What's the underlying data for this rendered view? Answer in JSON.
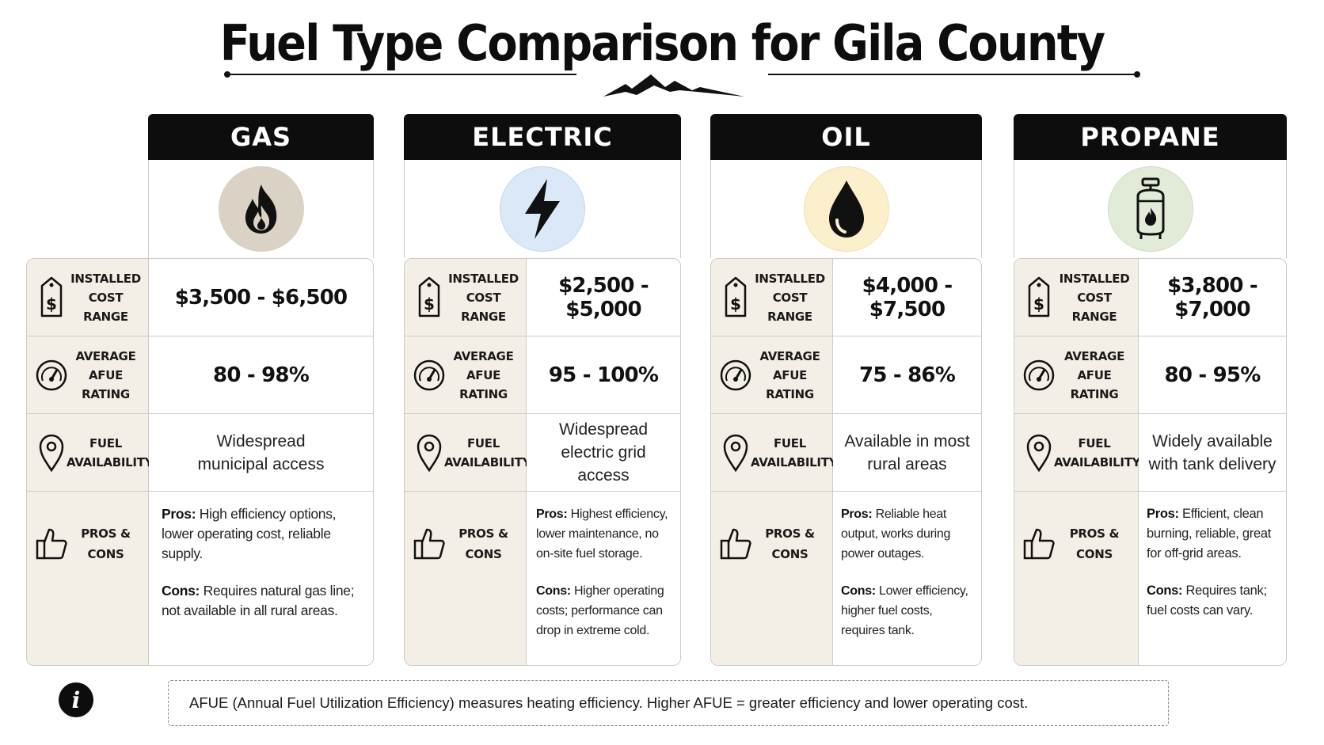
{
  "title": "Fuel Type Comparison for Gila County",
  "labels": {
    "cost_line1": "INSTALLED",
    "cost_line2": "COST RANGE",
    "afue_line1": "AVERAGE",
    "afue_line2": "AFUE RATING",
    "avail_line1": "FUEL",
    "avail_line2": "AVAILABILITY",
    "pros_cons": "PROS & CONS"
  },
  "cards": [
    {
      "name": "GAS",
      "icon": "flame-icon",
      "icon_bg": "#d9d2c5",
      "cost": "$3,500 - $6,500",
      "afue": "80 - 98%",
      "availability_line1": "Widespread",
      "availability_line2": "municipal access",
      "pros_label": "Pros:",
      "pros": "High efficiency options, lower operating cost, reliable supply.",
      "cons_label": "Cons:",
      "cons": "Requires natural gas line; not available in all rural areas."
    },
    {
      "name": "ELECTRIC",
      "icon": "lightning-bolt-icon",
      "icon_bg": "#dbe8f8",
      "cost": "$2,500 - $5,000",
      "afue": "95 - 100%",
      "availability_line1": "Widespread",
      "availability_line2": "electric grid access",
      "pros_label": "Pros:",
      "pros": "Highest efficiency, lower maintenance, no on-site fuel storage.",
      "cons_label": "Cons:",
      "cons": "Higher operating costs; performance can drop in extreme cold."
    },
    {
      "name": "OIL",
      "icon": "oil-drop-icon",
      "icon_bg": "#fbefcc",
      "cost": "$4,000 - $7,500",
      "afue": "75 - 86%",
      "availability_line1": "Available in most",
      "availability_line2": "rural areas",
      "pros_label": "Pros:",
      "pros": "Reliable heat output, works during power outages.",
      "cons_label": "Cons:",
      "cons": "Lower efficiency, higher fuel costs, requires tank."
    },
    {
      "name": "PROPANE",
      "icon": "propane-tank-icon",
      "icon_bg": "#e2ebd8",
      "cost": "$3,800 - $7,000",
      "afue": "80 - 95%",
      "availability_line1": "Widely available",
      "availability_line2": "with tank delivery",
      "pros_label": "Pros:",
      "pros": "Efficient, clean burning, reliable, great for off-grid areas.",
      "cons_label": "Cons:",
      "cons": "Requires tank; fuel costs can vary."
    }
  ],
  "info_icon": "i",
  "footnote": "AFUE (Annual Fuel Utilization Efficiency) measures heating efficiency. Higher AFUE = greater efficiency and lower operating cost."
}
